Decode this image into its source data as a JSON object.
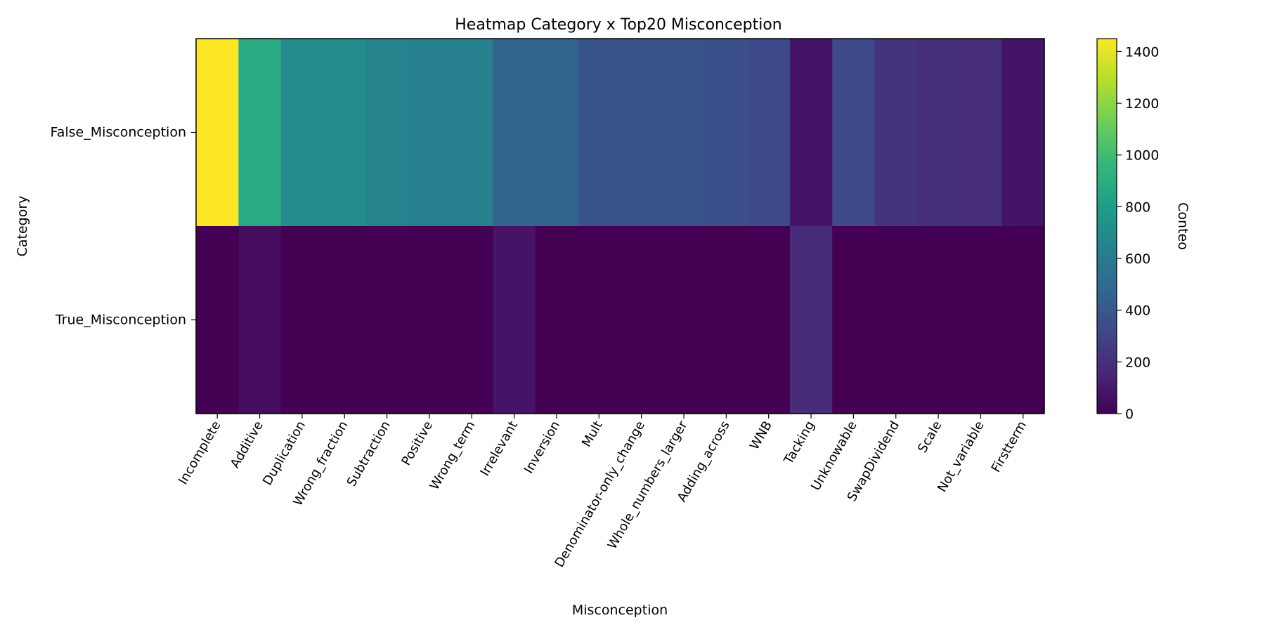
{
  "chart_data": {
    "type": "heatmap",
    "title": "Heatmap Category x Top20 Misconception",
    "xlabel": "Misconception",
    "ylabel": "Category",
    "colorbar_label": "Conteo",
    "colormap": "viridis",
    "colorbar_range": [
      0,
      1450
    ],
    "colorbar_ticks": [
      "0",
      "200",
      "400",
      "600",
      "800",
      "1000",
      "1200",
      "1400"
    ],
    "x_categories": [
      "Incomplete",
      "Additive",
      "Duplication",
      "Wrong_fraction",
      "Subtraction",
      "Positive",
      "Wrong_term",
      "Irrelevant",
      "Inversion",
      "Mult",
      "Denominator-only_change",
      "Whole_numbers_larger",
      "Adding_across",
      "WNB",
      "Tacking",
      "Unknowable",
      "SwapDividend",
      "Scale",
      "Not_variable",
      "Firstterm"
    ],
    "y_categories": [
      "False_Misconception",
      "True_Misconception"
    ],
    "values": [
      [
        1450,
        880,
        700,
        700,
        650,
        630,
        630,
        470,
        470,
        380,
        370,
        370,
        360,
        330,
        80,
        320,
        220,
        200,
        190,
        80
      ],
      [
        0,
        40,
        0,
        0,
        0,
        0,
        0,
        80,
        0,
        0,
        0,
        0,
        0,
        0,
        180,
        0,
        0,
        0,
        0,
        0
      ]
    ]
  }
}
